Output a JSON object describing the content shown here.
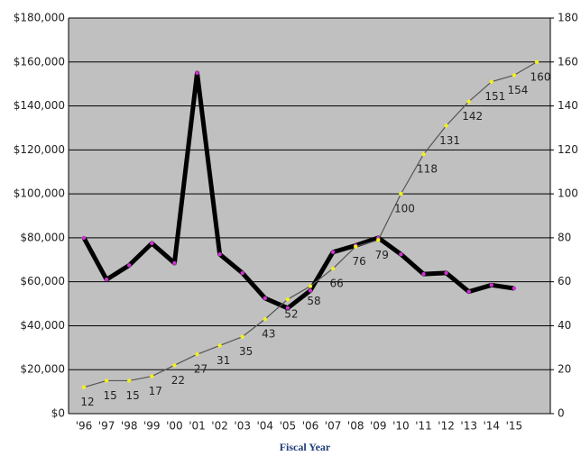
{
  "chart_data": {
    "type": "line",
    "x_title": "Fiscal Year",
    "categories": [
      "'96",
      "'97",
      "'98",
      "'99",
      "'00",
      "'01",
      "'02",
      "'03",
      "'04",
      "'05",
      "'06",
      "'07",
      "'08",
      "'09",
      "'10",
      "'11",
      "'12",
      "'13",
      "'14",
      "'15",
      null
    ],
    "series": [
      {
        "color": "#000000",
        "marker_color": "#cc33cc",
        "axis": "y",
        "values": [
          80000,
          61000,
          67500,
          77500,
          68500,
          155000,
          72500,
          64000,
          52500,
          48000,
          56000,
          73500,
          76500,
          80000,
          72500,
          63500,
          64000,
          55500,
          58500,
          57000,
          null
        ]
      },
      {
        "color": "#555555",
        "marker_color": "#f0f020",
        "axis": "y2",
        "values": [
          12,
          15,
          15,
          17,
          22,
          27,
          31,
          35,
          43,
          52,
          58,
          66,
          76,
          79,
          100,
          118,
          131,
          142,
          151,
          154,
          160
        ]
      }
    ],
    "ylim": [
      0,
      180000
    ],
    "yticks": [
      {
        "value": 0,
        "label": "$0"
      },
      {
        "value": 20000,
        "label": "$20,000"
      },
      {
        "value": 40000,
        "label": "$40,000"
      },
      {
        "value": 60000,
        "label": "$60,000"
      },
      {
        "value": 80000,
        "label": "$80,000"
      },
      {
        "value": 100000,
        "label": "$100,000"
      },
      {
        "value": 120000,
        "label": "$120,000"
      },
      {
        "value": 140000,
        "label": "$140,000"
      },
      {
        "value": 160000,
        "label": "$160,000"
      },
      {
        "value": 180000,
        "label": "$180,000"
      }
    ],
    "y2lim": [
      0,
      180
    ],
    "y2ticks": [
      0,
      20,
      40,
      60,
      80,
      100,
      120,
      140,
      160,
      180
    ],
    "grid": true,
    "background": "#c0c0c0"
  }
}
